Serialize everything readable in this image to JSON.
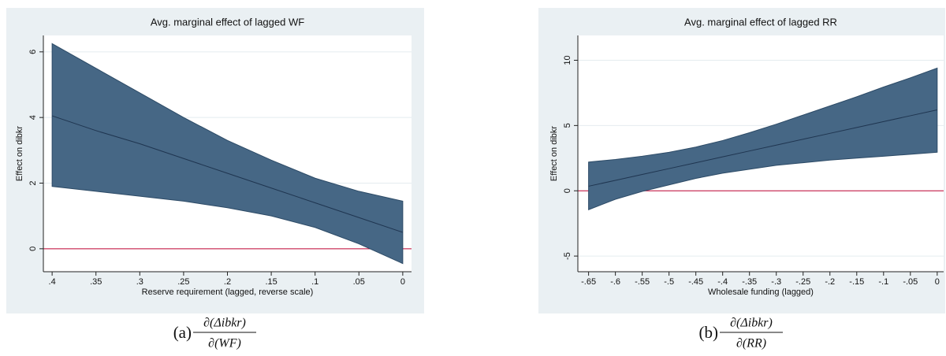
{
  "chart_data": [
    {
      "type": "line",
      "title": "Avg. marginal effect of lagged WF",
      "xlabel": "Reserve requirement (lagged, reverse scale)",
      "ylabel": "Effect on dibkr",
      "x": [
        0.4,
        0.35,
        0.3,
        0.25,
        0.2,
        0.15,
        0.1,
        0.05,
        0
      ],
      "values": [
        4.05,
        3.6,
        3.2,
        2.75,
        2.3,
        1.85,
        1.4,
        0.95,
        0.5
      ],
      "ci_upper": [
        6.25,
        5.5,
        4.75,
        4.0,
        3.3,
        2.7,
        2.15,
        1.75,
        1.45
      ],
      "ci_lower": [
        1.9,
        1.75,
        1.6,
        1.45,
        1.25,
        1.0,
        0.65,
        0.15,
        -0.45
      ],
      "color": "#1f3550",
      "band_color": "#466785",
      "xlim": [
        0.41,
        -0.01
      ],
      "ylim": [
        -0.7,
        6.5
      ],
      "xticks": [
        {
          "value": 0.4,
          "label": ".4"
        },
        {
          "value": 0.35,
          "label": ".35"
        },
        {
          "value": 0.3,
          "label": ".3"
        },
        {
          "value": 0.25,
          "label": ".25"
        },
        {
          "value": 0.2,
          "label": ".2"
        },
        {
          "value": 0.15,
          "label": ".15"
        },
        {
          "value": 0.1,
          "label": ".1"
        },
        {
          "value": 0.05,
          "label": ".05"
        },
        0
      ],
      "yticks": [
        0,
        2,
        4,
        6
      ],
      "grid": true,
      "hline": 0,
      "hline_color": "#c10534",
      "caption": {
        "label": "(a)",
        "numerator": "∂(Δibkr)",
        "denominator": "∂(WF)"
      }
    },
    {
      "type": "line",
      "title": "Avg. marginal effect of lagged RR",
      "xlabel": "Wholesale funding (lagged)",
      "ylabel": "Effect on dibkr",
      "x": [
        -0.65,
        -0.6,
        -0.55,
        -0.5,
        -0.45,
        -0.4,
        -0.35,
        -0.3,
        -0.25,
        -0.2,
        -0.15,
        -0.1,
        -0.05,
        0
      ],
      "values": [
        0.35,
        0.8,
        1.25,
        1.7,
        2.15,
        2.6,
        3.05,
        3.5,
        3.95,
        4.4,
        4.85,
        5.3,
        5.75,
        6.2
      ],
      "ci_upper": [
        2.2,
        2.4,
        2.65,
        2.95,
        3.35,
        3.85,
        4.45,
        5.1,
        5.8,
        6.5,
        7.2,
        7.95,
        8.65,
        9.4
      ],
      "ci_lower": [
        -1.45,
        -0.65,
        -0.05,
        0.45,
        0.95,
        1.35,
        1.65,
        1.95,
        2.15,
        2.35,
        2.5,
        2.65,
        2.8,
        2.95
      ],
      "color": "#1f3550",
      "band_color": "#466785",
      "xlim": [
        -0.67,
        0.012
      ],
      "ylim": [
        -6.2,
        11.9
      ],
      "xticks": [
        {
          "value": -0.65,
          "label": "-.65"
        },
        {
          "value": -0.6,
          "label": "-.6"
        },
        {
          "value": -0.55,
          "label": "-.55"
        },
        {
          "value": -0.5,
          "label": "-.5"
        },
        {
          "value": -0.45,
          "label": "-.45"
        },
        {
          "value": -0.4,
          "label": "-.4"
        },
        {
          "value": -0.35,
          "label": "-.35"
        },
        {
          "value": -0.3,
          "label": "-.3"
        },
        {
          "value": -0.25,
          "label": "-.25"
        },
        {
          "value": -0.2,
          "label": "-.2"
        },
        {
          "value": -0.15,
          "label": "-.15"
        },
        {
          "value": -0.1,
          "label": "-.1"
        },
        {
          "value": -0.05,
          "label": "-.05"
        },
        0
      ],
      "yticks": [
        -5,
        0,
        5,
        10
      ],
      "grid": true,
      "hline": 0,
      "hline_color": "#c10534",
      "caption": {
        "label": "(b)",
        "numerator": "∂(Δibkr)",
        "denominator": "∂(RR)"
      }
    }
  ]
}
